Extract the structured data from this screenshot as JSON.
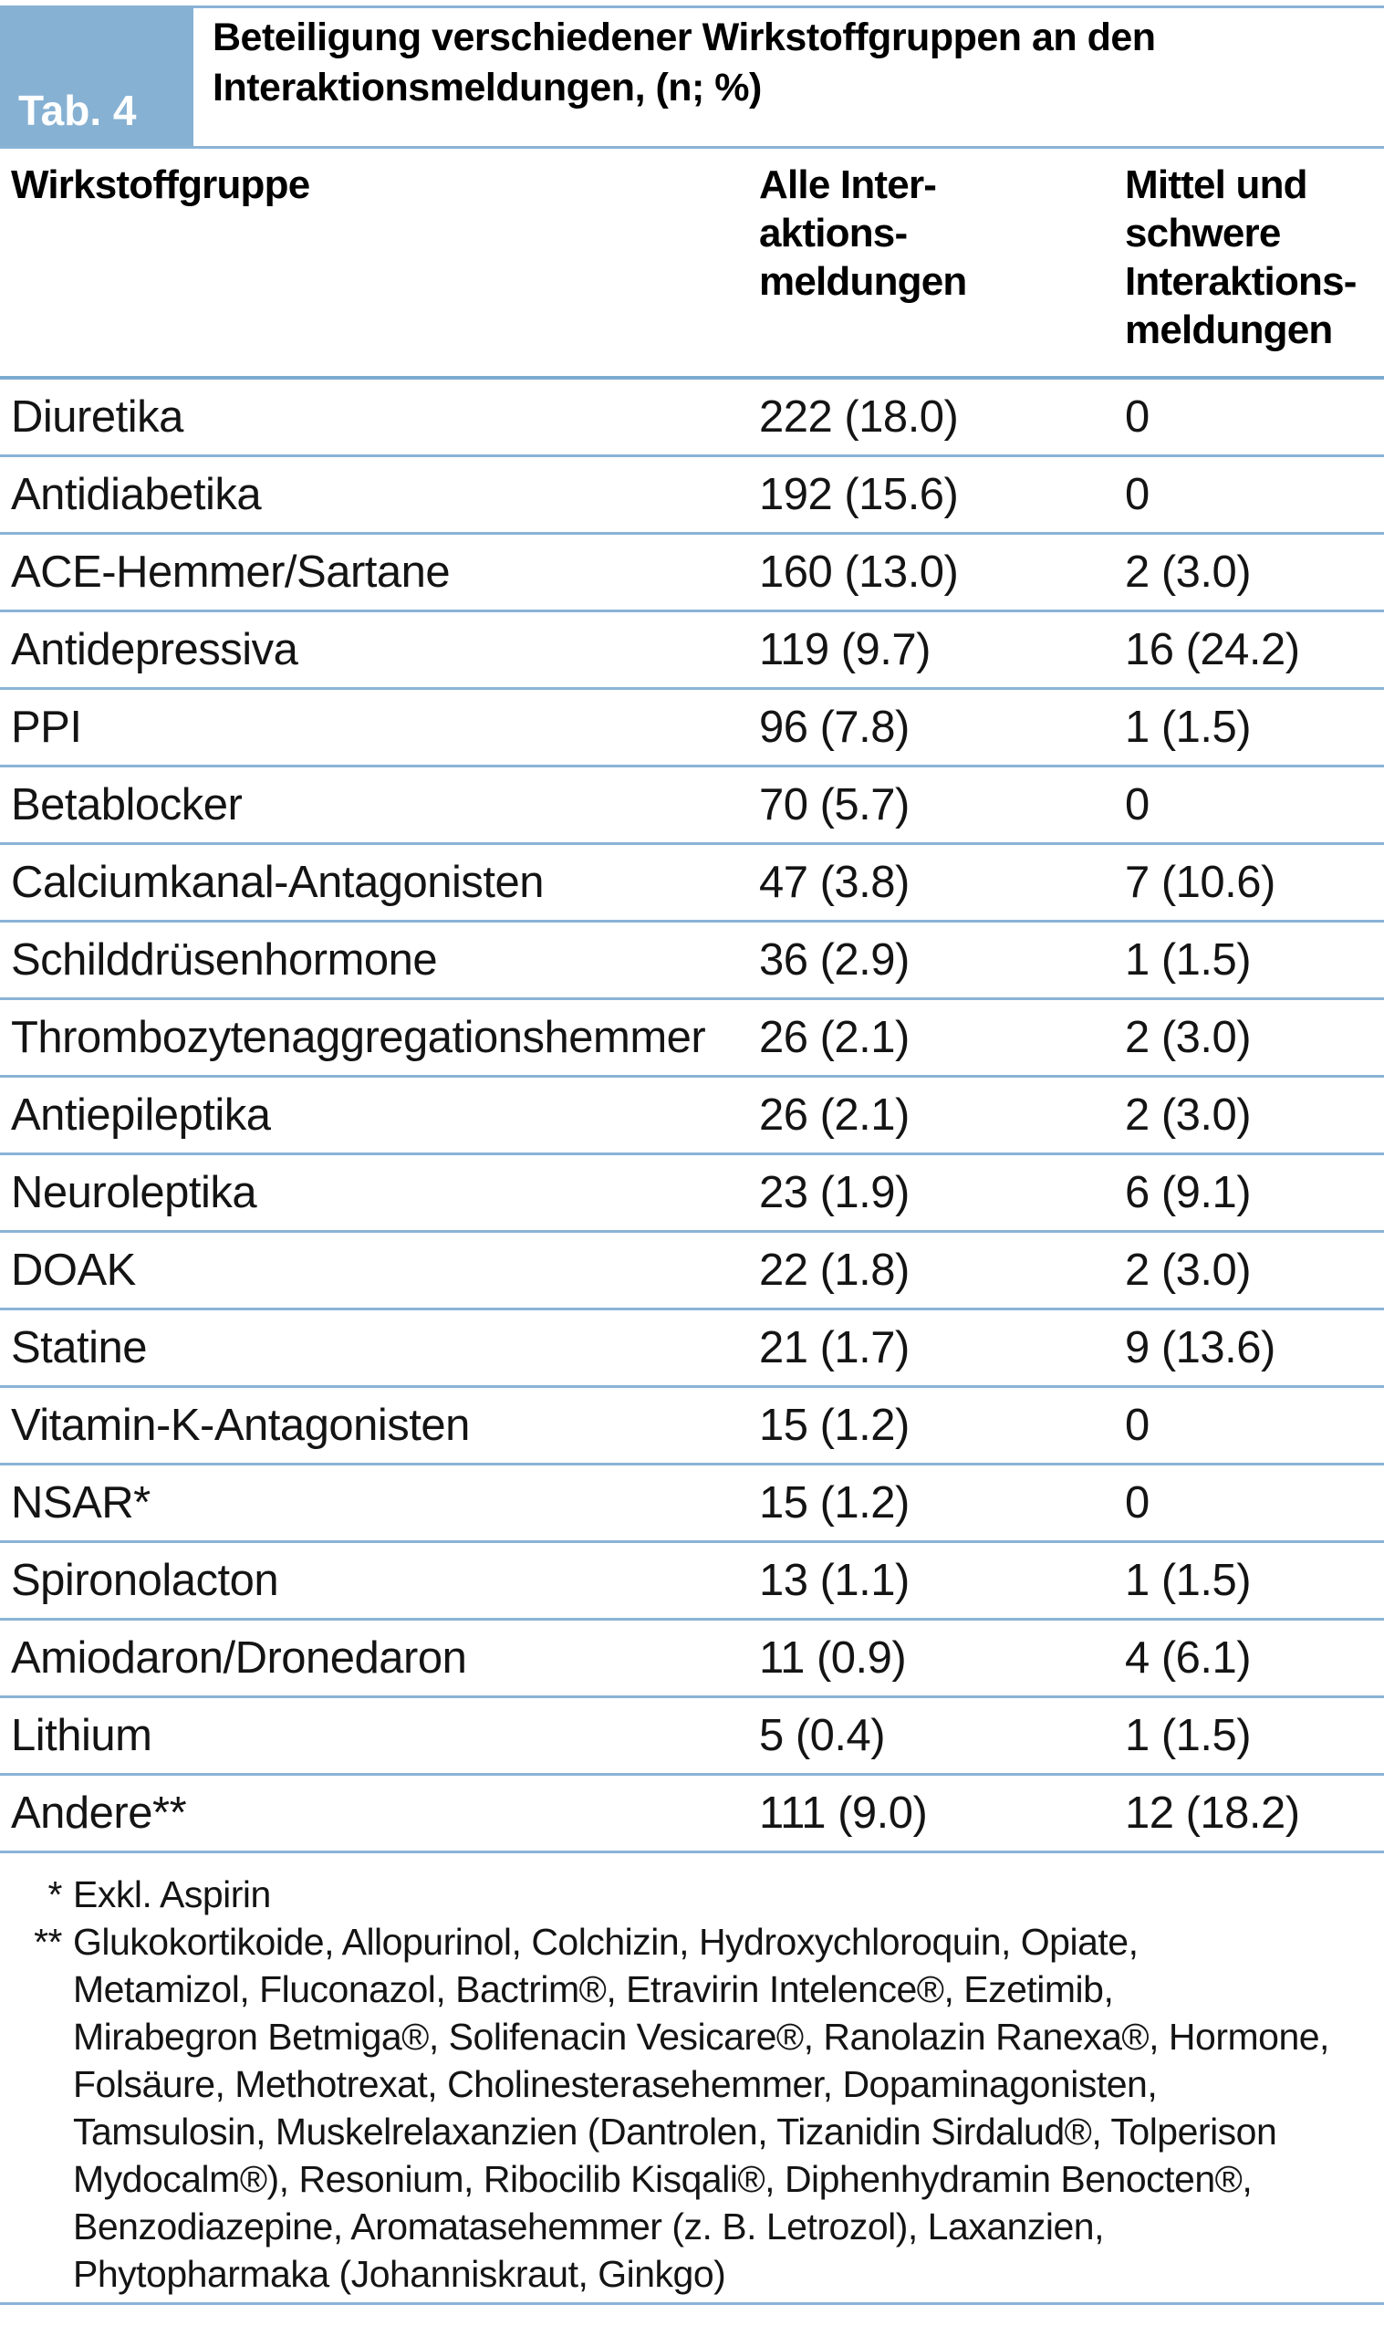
{
  "figure": {
    "tab_label": "Tab. 4",
    "title_line1": "Beteiligung verschiedener Wirkstoffgruppen an den",
    "title_line2": "Interaktionsmeldungen, (n; %)",
    "colors": {
      "accent_blue": "#86b1d3",
      "separator_blue": "#8ab3d6",
      "heavy_line_blue": "#7dabd0"
    }
  },
  "table": {
    "columns": [
      {
        "label": "Wirkstoffgruppe"
      },
      {
        "lines": [
          "Alle Inter-",
          "aktions-",
          "meldungen"
        ]
      },
      {
        "lines": [
          "Mittel und",
          "schwere",
          "Interaktions-",
          "meldungen"
        ]
      }
    ],
    "rows": [
      {
        "group": "Diuretika",
        "all": "222 (18.0)",
        "severe": "0"
      },
      {
        "group": "Antidiabetika",
        "all": "192 (15.6)",
        "severe": "0"
      },
      {
        "group": "ACE-Hemmer/Sartane",
        "all": "160 (13.0)",
        "severe": "2 (3.0)"
      },
      {
        "group": "Antidepressiva",
        "all": "119 (9.7)",
        "severe": "16 (24.2)"
      },
      {
        "group": "PPI",
        "all": "96 (7.8)",
        "severe": "1 (1.5)"
      },
      {
        "group": "Betablocker",
        "all": "70 (5.7)",
        "severe": "0"
      },
      {
        "group": "Calciumkanal-Antagonisten",
        "all": "47 (3.8)",
        "severe": "7 (10.6)"
      },
      {
        "group": "Schilddrüsenhormone",
        "all": "36 (2.9)",
        "severe": "1 (1.5)"
      },
      {
        "group": "Thrombozytenaggregationshemmer",
        "all": "26 (2.1)",
        "severe": "2 (3.0)"
      },
      {
        "group": "Antiepileptika",
        "all": "26 (2.1)",
        "severe": "2 (3.0)"
      },
      {
        "group": "Neuroleptika",
        "all": "23 (1.9)",
        "severe": "6 (9.1)"
      },
      {
        "group": "DOAK",
        "all": "22 (1.8)",
        "severe": "2 (3.0)"
      },
      {
        "group": "Statine",
        "all": "21 (1.7)",
        "severe": "9 (13.6)"
      },
      {
        "group": "Vitamin-K-Antagonisten",
        "all": "15 (1.2)",
        "severe": "0"
      },
      {
        "group": "NSAR*",
        "all": "15 (1.2)",
        "severe": "0"
      },
      {
        "group": "Spironolacton",
        "all": "13 (1.1)",
        "severe": "1 (1.5)"
      },
      {
        "group": "Amiodaron/Dronedaron",
        "all": "11 (0.9)",
        "severe": "4 (6.1)"
      },
      {
        "group": "Lithium",
        "all": "5 (0.4)",
        "severe": "1 (1.5)"
      },
      {
        "group": "Andere**",
        "all": "111 (9.0)",
        "severe": "12 (18.2)"
      }
    ]
  },
  "footnotes": {
    "lines": [
      {
        "marker": "*",
        "text": "Exkl. Aspirin"
      },
      {
        "marker": "**",
        "text": "Glukokortikoide, Allopurinol, Colchizin, Hydroxychloroquin, Opiate,"
      },
      {
        "marker": "",
        "text": "Metamizol, Fluconazol, Bactrim®, Etravirin Intelence®, Ezetimib,"
      },
      {
        "marker": "",
        "text": "Mirabegron Betmiga®, Solifenacin Vesicare®, Ranolazin Ranexa®, Hormone,"
      },
      {
        "marker": "",
        "text": "Folsäure, Methotrexat, Cholinesterasehemmer, Dopaminagonisten,"
      },
      {
        "marker": "",
        "text": "Tamsulosin, Muskelrelaxanzien (Dantrolen, Tizanidin Sirdalud®, Tolperison"
      },
      {
        "marker": "",
        "text": "Mydocalm®), Resonium, Ribocilib Kisqali®, Diphenhydramin Benocten®,"
      },
      {
        "marker": "",
        "text": "Benzodiazepine, Aromatasehemmer (z. B. Letrozol), Laxanzien,"
      },
      {
        "marker": "",
        "text": "Phytopharmaka (Johanniskraut, Ginkgo)"
      }
    ]
  }
}
